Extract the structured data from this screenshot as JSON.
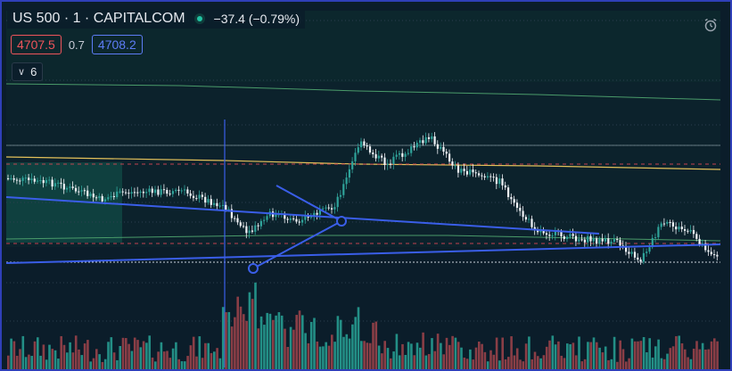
{
  "header": {
    "symbol": "US 500 · 1 · CAPITALCOM",
    "change": "−37.4 (−0.79%)"
  },
  "quote": {
    "sell_price": "4707.5",
    "spread": "0.7",
    "buy_price": "4708.2"
  },
  "indicators": {
    "count": "6"
  },
  "icons": {
    "chevron": "chevron-down-icon",
    "alarm": "alarm-clock-icon",
    "status": "market-open-dot-icon"
  },
  "colors": {
    "background": "#0b1d2a",
    "up": "#2fa39a",
    "down": "#f0f3f7",
    "vol_up": "#238f86",
    "vol_down": "#8a3e46",
    "trendline": "#3a5ee8",
    "yellow_line": "#e4c15a",
    "green_line": "#4a9b6a",
    "dashed": "#c2424f"
  }
}
